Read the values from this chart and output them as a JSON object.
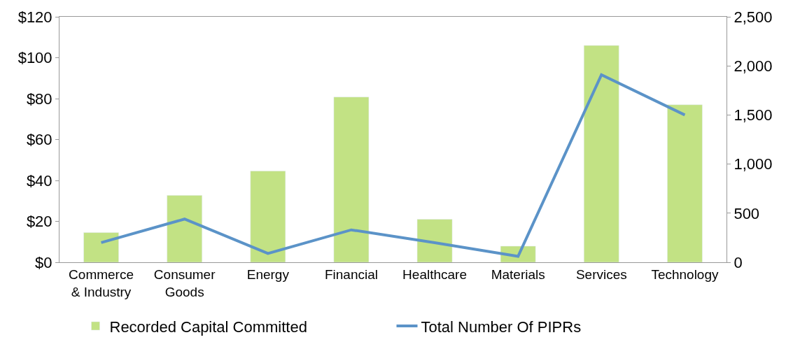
{
  "chart_data": {
    "type": "bar",
    "categories": [
      "Commerce & Industry",
      "Consumer Goods",
      "Energy",
      "Financial",
      "Healthcare",
      "Materials",
      "Services",
      "Technology"
    ],
    "series": [
      {
        "name": "Recorded Capital Committed",
        "color": "#c2e284",
        "values": [
          14.5,
          32.7,
          44.6,
          80.8,
          21,
          7.9,
          106,
          77
        ]
      },
      {
        "name": "Total Number Of PIPRs",
        "type": "line",
        "axis": "y2",
        "color": "#5b93c8",
        "values": [
          200,
          440,
          90,
          330,
          200,
          60,
          1910,
          1500
        ]
      }
    ],
    "ylim": [
      0,
      120
    ],
    "yticks": [
      {
        "value": 0,
        "label": "$0"
      },
      {
        "value": 20,
        "label": "$20"
      },
      {
        "value": 40,
        "label": "$40"
      },
      {
        "value": 60,
        "label": "$60"
      },
      {
        "value": 80,
        "label": "$80"
      },
      {
        "value": 100,
        "label": "$100"
      },
      {
        "value": 120,
        "label": "$120"
      }
    ],
    "y2lim": [
      0,
      2500
    ],
    "y2ticks": [
      0,
      {
        "value": 500,
        "label": "500"
      },
      {
        "value": 1000,
        "label": "1,000"
      },
      {
        "value": 1500,
        "label": "1,500"
      },
      {
        "value": 2000,
        "label": "2,000"
      },
      {
        "value": 2500,
        "label": "2,500"
      }
    ],
    "legend": "bottom",
    "marker": "none",
    "line_style": "solid"
  }
}
